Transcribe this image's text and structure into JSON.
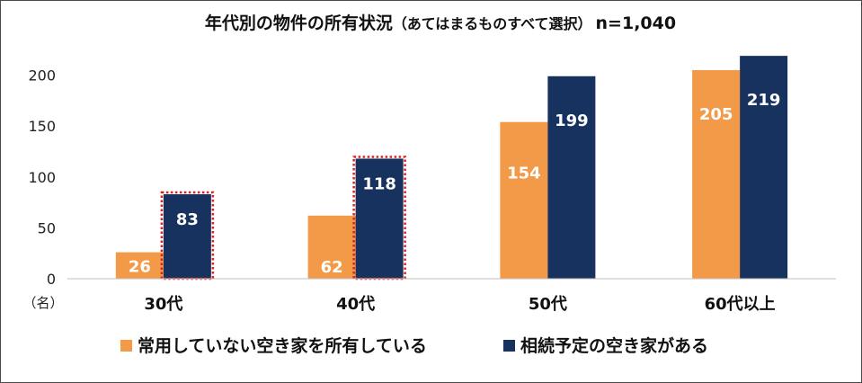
{
  "chart_data": {
    "type": "bar",
    "title": "年代別の物件の所有状況",
    "title_note": "（あてはまるものすべて選択）",
    "sample_size": "n=1,040",
    "unit_label": "（名）",
    "categories": [
      "30代",
      "40代",
      "50代",
      "60代以上"
    ],
    "series": [
      {
        "name": "常用していない空き家を所有している",
        "values": [
          26,
          62,
          154,
          205
        ],
        "color": "#f39a48"
      },
      {
        "name": "相続予定の空き家がある",
        "values": [
          83,
          118,
          199,
          219
        ],
        "color": "#17325e"
      }
    ],
    "ylim": [
      0,
      220
    ],
    "yticks": [
      0,
      50,
      100,
      150,
      200
    ],
    "highlighted_bars": [
      {
        "series": 1,
        "category": 0
      },
      {
        "series": 1,
        "category": 1
      }
    ],
    "highlight_color": "#e02020",
    "legend_position": "bottom",
    "grid": false
  }
}
